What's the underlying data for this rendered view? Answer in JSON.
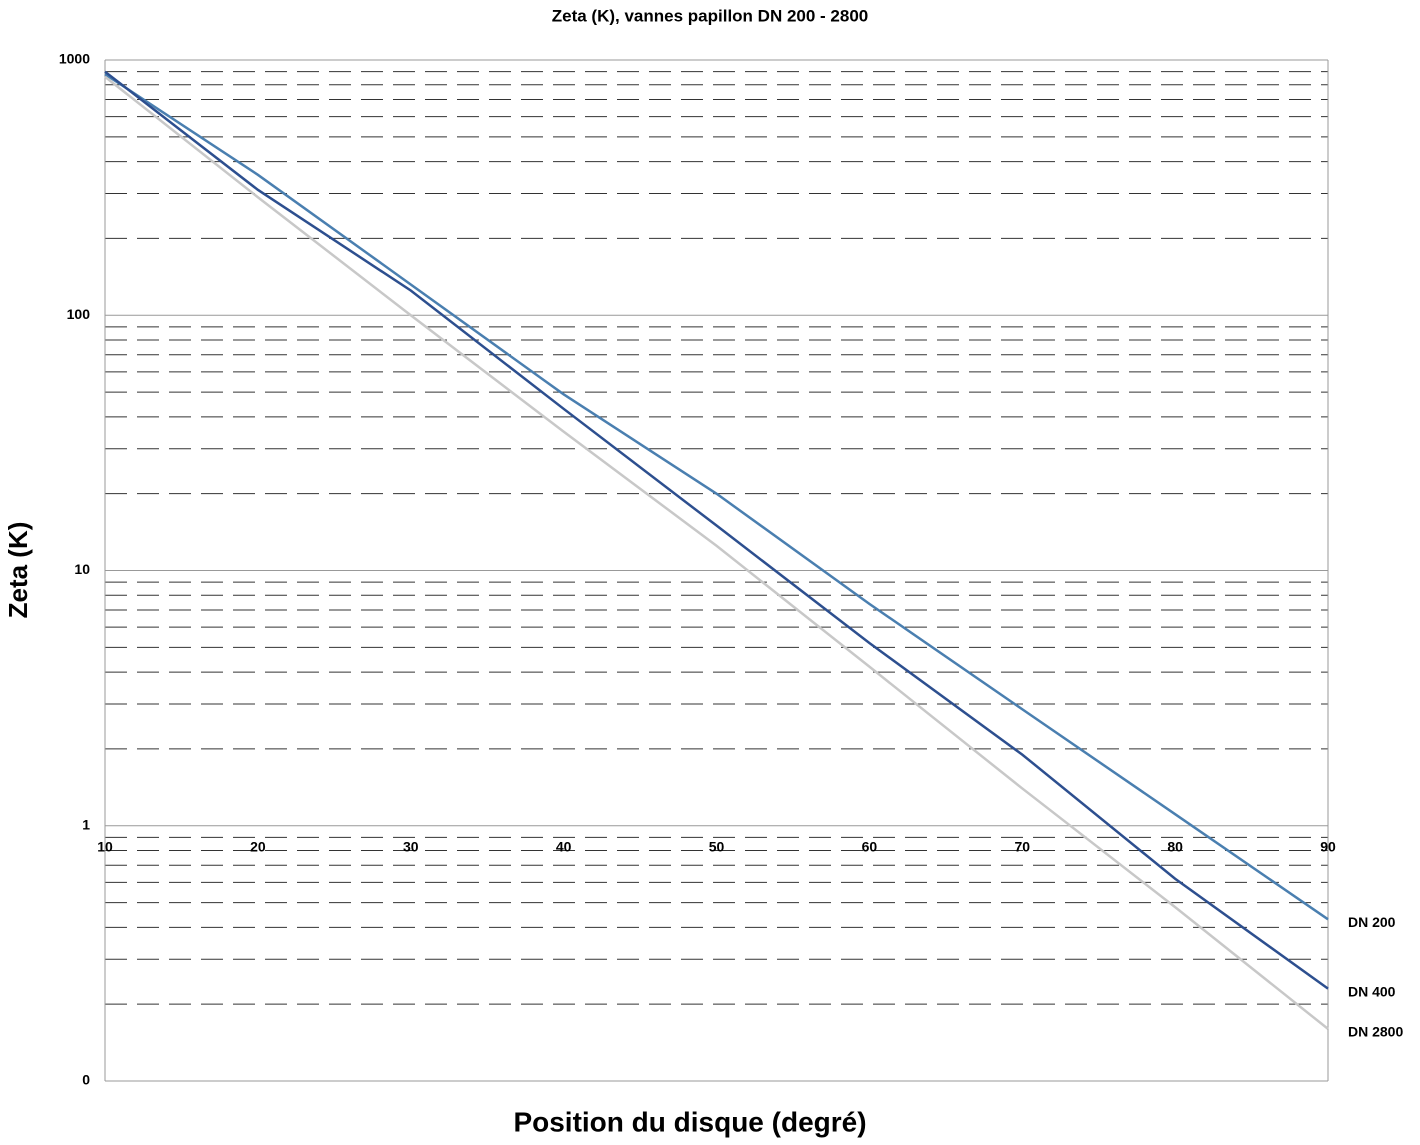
{
  "chart_data": {
    "type": "line",
    "title": "Zeta (K), vannes papillon DN 200 - 2800",
    "x_label": "Position du disque (degré)",
    "y_label": "Zeta (K)",
    "x": [
      10,
      20,
      30,
      40,
      50,
      60,
      70,
      80,
      90
    ],
    "series": [
      {
        "name": "DN 200",
        "color": "#4a7fb0",
        "values": [
          880,
          355,
          132,
          49,
          20,
          7.4,
          2.86,
          1.11,
          0.43
        ]
      },
      {
        "name": "DN 400",
        "color": "#2d4f8f",
        "values": [
          900,
          310,
          125,
          43,
          15,
          5.2,
          1.9,
          0.62,
          0.23
        ]
      },
      {
        "name": "DN 2800",
        "color": "#c8c8c8",
        "values": [
          860,
          290,
          100,
          35,
          12.5,
          4.2,
          1.4,
          0.48,
          0.16
        ]
      }
    ],
    "xlim": [
      10,
      90
    ],
    "xticks": [
      10,
      20,
      30,
      40,
      50,
      60,
      70,
      80,
      90
    ],
    "ylim": [
      0.1,
      1000
    ],
    "yticks": [
      {
        "value": 0.1,
        "label": "0"
      },
      1,
      10,
      100,
      1000
    ],
    "y_log": true,
    "grid": true
  }
}
